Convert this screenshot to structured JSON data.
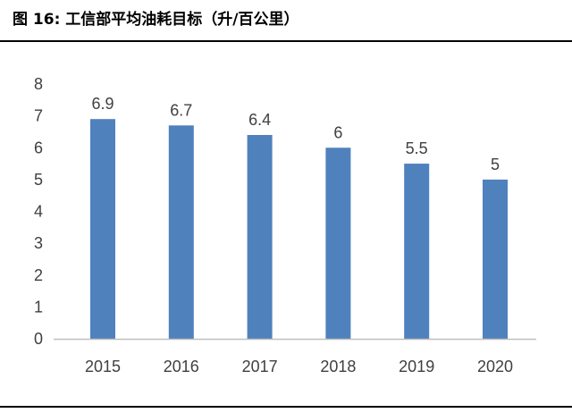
{
  "figure": {
    "title": "图 16:  工信部平均油耗目标（升/百公里）"
  },
  "colors": {
    "bar": "#4F81BD",
    "axis": "#BFBFBF",
    "text": "#404040"
  },
  "chart_data": {
    "type": "bar",
    "title": "",
    "xlabel": "",
    "ylabel": "",
    "categories": [
      "2015",
      "2016",
      "2017",
      "2018",
      "2019",
      "2020"
    ],
    "values": [
      6.9,
      6.7,
      6.4,
      6,
      5.5,
      5
    ],
    "data_labels": [
      "6.9",
      "6.7",
      "6.4",
      "6",
      "5.5",
      "5"
    ],
    "ylim": [
      0,
      8
    ],
    "yticks": [
      "0",
      "1",
      "2",
      "3",
      "4",
      "5",
      "6",
      "7",
      "8"
    ],
    "grid": false,
    "legend": "none"
  }
}
